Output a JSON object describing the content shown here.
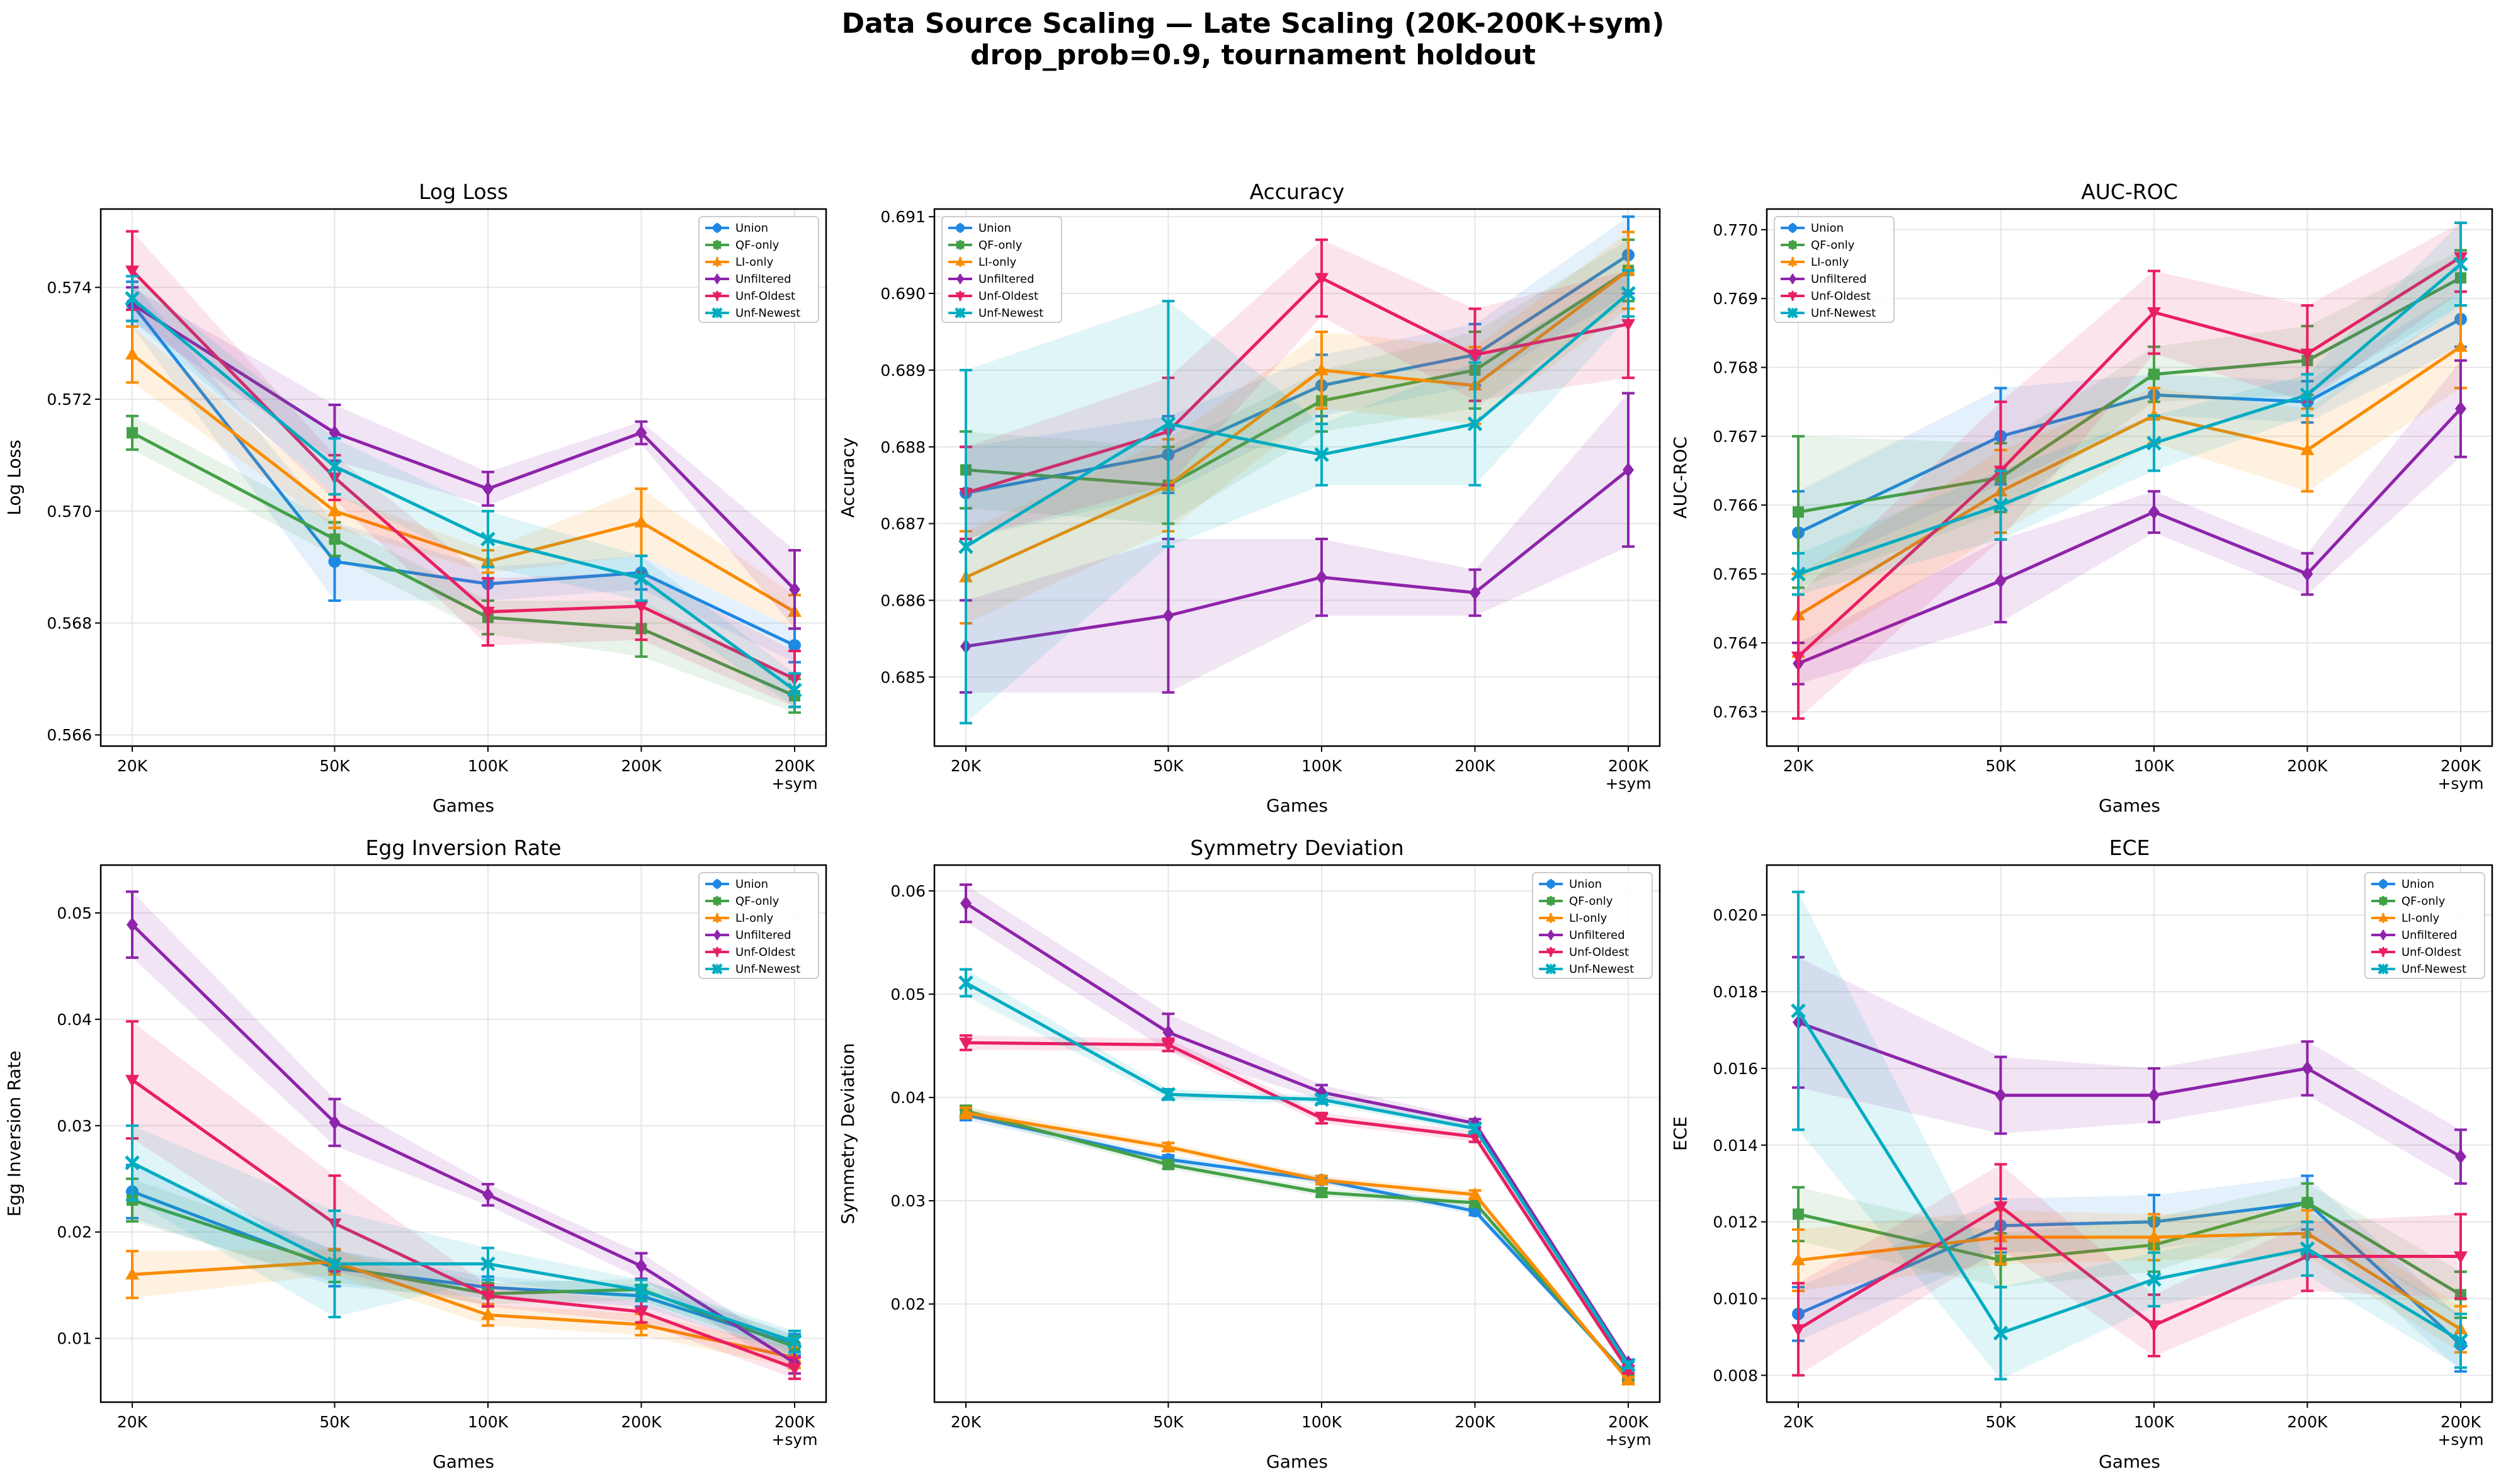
{
  "figure": {
    "title_line1": "Data Source Scaling — Late Scaling (20K-200K+sym)",
    "title_line2": "drop_prob=0.9, tournament holdout"
  },
  "colors": {
    "Union": "#1e88e5",
    "QF-only": "#43a047",
    "LI-only": "#fb8c00",
    "Unfiltered": "#8e24aa",
    "Unf-Oldest": "#e91e63",
    "Unf-Newest": "#00acc1"
  },
  "chart_data": [
    {
      "type": "line",
      "title": "Log Loss",
      "xlabel": "Games",
      "ylabel": "Log Loss",
      "categories": [
        "20K",
        "50K",
        "100K",
        "200K",
        "200K\n+sym"
      ],
      "ylim": [
        0.5658,
        0.5754
      ],
      "yticks": [
        0.566,
        0.568,
        0.57,
        0.572,
        0.574
      ],
      "ytick_labels": [
        "0.566",
        "0.568",
        "0.570",
        "0.572",
        "0.574"
      ],
      "legend": "top-right",
      "series": [
        {
          "name": "Union",
          "marker": "circle",
          "values": [
            0.5737,
            0.5691,
            0.5687,
            0.5689,
            0.5676
          ],
          "errors": [
            0.0004,
            0.0007,
            0.0003,
            0.0003,
            0.0003
          ]
        },
        {
          "name": "QF-only",
          "marker": "square",
          "values": [
            0.5714,
            0.5695,
            0.5681,
            0.5679,
            0.5667
          ],
          "errors": [
            0.0003,
            0.0003,
            0.0003,
            0.0005,
            0.0003
          ]
        },
        {
          "name": "LI-only",
          "marker": "triangle-up",
          "values": [
            0.5728,
            0.57,
            0.5691,
            0.5698,
            0.5682
          ],
          "errors": [
            0.0005,
            0.0003,
            0.0002,
            0.0006,
            0.0003
          ]
        },
        {
          "name": "Unfiltered",
          "marker": "diamond",
          "values": [
            0.5737,
            0.5714,
            0.5704,
            0.5714,
            0.5686
          ],
          "errors": [
            0.0003,
            0.0005,
            0.0003,
            0.0002,
            0.0007
          ]
        },
        {
          "name": "Unf-Oldest",
          "marker": "triangle-down",
          "values": [
            0.5743,
            0.5706,
            0.5682,
            0.5683,
            0.567
          ],
          "errors": [
            0.0007,
            0.0004,
            0.0006,
            0.0006,
            0.0005
          ]
        },
        {
          "name": "Unf-Newest",
          "marker": "x",
          "values": [
            0.5738,
            0.5708,
            0.5695,
            0.5688,
            0.5668
          ],
          "errors": [
            0.0004,
            0.0005,
            0.0005,
            0.0004,
            0.0003
          ]
        }
      ]
    },
    {
      "type": "line",
      "title": "Accuracy",
      "xlabel": "Games",
      "ylabel": "Accuracy",
      "categories": [
        "20K",
        "50K",
        "100K",
        "200K",
        "200K\n+sym"
      ],
      "ylim": [
        0.6841,
        0.6911
      ],
      "yticks": [
        0.685,
        0.686,
        0.687,
        0.688,
        0.689,
        0.69,
        0.691
      ],
      "ytick_labels": [
        "0.685",
        "0.686",
        "0.687",
        "0.688",
        "0.689",
        "0.690",
        "0.691"
      ],
      "legend": "top-left",
      "series": [
        {
          "name": "Union",
          "marker": "circle",
          "values": [
            0.6874,
            0.6879,
            0.6888,
            0.6892,
            0.6905
          ],
          "errors": [
            0.0006,
            0.0005,
            0.0004,
            0.0004,
            0.0005
          ]
        },
        {
          "name": "QF-only",
          "marker": "square",
          "values": [
            0.6877,
            0.6875,
            0.6886,
            0.689,
            0.6903
          ],
          "errors": [
            0.0005,
            0.0005,
            0.0004,
            0.0005,
            0.0004
          ]
        },
        {
          "name": "LI-only",
          "marker": "triangle-up",
          "values": [
            0.6863,
            0.6875,
            0.689,
            0.6888,
            0.6903
          ],
          "errors": [
            0.0006,
            0.0006,
            0.0005,
            0.0005,
            0.0005
          ]
        },
        {
          "name": "Unfiltered",
          "marker": "diamond",
          "values": [
            0.6854,
            0.6858,
            0.6863,
            0.6861,
            0.6877
          ],
          "errors": [
            0.0006,
            0.001,
            0.0005,
            0.0003,
            0.001
          ]
        },
        {
          "name": "Unf-Oldest",
          "marker": "triangle-down",
          "values": [
            0.6874,
            0.6882,
            0.6902,
            0.6892,
            0.6896
          ],
          "errors": [
            0.0006,
            0.0007,
            0.0005,
            0.0006,
            0.0007
          ]
        },
        {
          "name": "Unf-Newest",
          "marker": "x",
          "values": [
            0.6867,
            0.6883,
            0.6879,
            0.6883,
            0.69
          ],
          "errors": [
            0.0023,
            0.0016,
            0.0004,
            0.0008,
            0.0003
          ]
        }
      ]
    },
    {
      "type": "line",
      "title": "AUC-ROC",
      "xlabel": "Games",
      "ylabel": "AUC-ROC",
      "categories": [
        "20K",
        "50K",
        "100K",
        "200K",
        "200K\n+sym"
      ],
      "ylim": [
        0.7625,
        0.7703
      ],
      "yticks": [
        0.763,
        0.764,
        0.765,
        0.766,
        0.767,
        0.768,
        0.769,
        0.77
      ],
      "ytick_labels": [
        "0.763",
        "0.764",
        "0.765",
        "0.766",
        "0.767",
        "0.768",
        "0.769",
        "0.770"
      ],
      "legend": "top-left",
      "series": [
        {
          "name": "Union",
          "marker": "circle",
          "values": [
            0.7656,
            0.767,
            0.7676,
            0.7675,
            0.7687
          ],
          "errors": [
            0.0006,
            0.0007,
            0.0003,
            0.0003,
            0.0004
          ]
        },
        {
          "name": "QF-only",
          "marker": "square",
          "values": [
            0.7659,
            0.7664,
            0.7679,
            0.7681,
            0.7693
          ],
          "errors": [
            0.0011,
            0.0005,
            0.0004,
            0.0005,
            0.0004
          ]
        },
        {
          "name": "LI-only",
          "marker": "triangle-up",
          "values": [
            0.7644,
            0.7662,
            0.7673,
            0.7668,
            0.7683
          ],
          "errors": [
            0.0006,
            0.0006,
            0.0004,
            0.0006,
            0.0006
          ]
        },
        {
          "name": "Unfiltered",
          "marker": "diamond",
          "values": [
            0.7637,
            0.7649,
            0.7659,
            0.765,
            0.7674
          ],
          "errors": [
            0.0003,
            0.0006,
            0.0003,
            0.0003,
            0.0007
          ]
        },
        {
          "name": "Unf-Oldest",
          "marker": "triangle-down",
          "values": [
            0.7638,
            0.7665,
            0.7688,
            0.7682,
            0.7696
          ],
          "errors": [
            0.0009,
            0.001,
            0.0006,
            0.0007,
            0.0005
          ]
        },
        {
          "name": "Unf-Newest",
          "marker": "x",
          "values": [
            0.765,
            0.766,
            0.7669,
            0.7676,
            0.7695
          ],
          "errors": [
            0.0003,
            0.0005,
            0.0004,
            0.0003,
            0.0006
          ]
        }
      ]
    },
    {
      "type": "line",
      "title": "Egg Inversion Rate",
      "xlabel": "Games",
      "ylabel": "Egg Inversion Rate",
      "categories": [
        "20K",
        "50K",
        "100K",
        "200K",
        "200K\n+sym"
      ],
      "ylim": [
        0.004,
        0.0545
      ],
      "yticks": [
        0.01,
        0.02,
        0.03,
        0.04,
        0.05
      ],
      "ytick_labels": [
        "0.01",
        "0.02",
        "0.03",
        "0.04",
        "0.05"
      ],
      "legend": "top-right",
      "series": [
        {
          "name": "Union",
          "marker": "circle",
          "values": [
            0.0238,
            0.0166,
            0.0148,
            0.014,
            0.0094
          ],
          "errors": [
            0.0025,
            0.0017,
            0.001,
            0.001,
            0.001
          ]
        },
        {
          "name": "QF-only",
          "marker": "square",
          "values": [
            0.023,
            0.0168,
            0.0142,
            0.0146,
            0.0092
          ],
          "errors": [
            0.002,
            0.0015,
            0.001,
            0.001,
            0.001
          ]
        },
        {
          "name": "LI-only",
          "marker": "triangle-up",
          "values": [
            0.016,
            0.0172,
            0.0122,
            0.0113,
            0.0082
          ],
          "errors": [
            0.0022,
            0.0012,
            0.001,
            0.001,
            0.001
          ]
        },
        {
          "name": "Unfiltered",
          "marker": "diamond",
          "values": [
            0.0489,
            0.0303,
            0.0235,
            0.0168,
            0.0077
          ],
          "errors": [
            0.0031,
            0.0022,
            0.001,
            0.0012,
            0.001
          ]
        },
        {
          "name": "Unf-Oldest",
          "marker": "triangle-down",
          "values": [
            0.0343,
            0.0208,
            0.014,
            0.0125,
            0.0072
          ],
          "errors": [
            0.0055,
            0.0045,
            0.001,
            0.001,
            0.001
          ]
        },
        {
          "name": "Unf-Newest",
          "marker": "x",
          "values": [
            0.0265,
            0.017,
            0.017,
            0.0145,
            0.0097
          ],
          "errors": [
            0.0035,
            0.005,
            0.0015,
            0.001,
            0.001
          ]
        }
      ]
    },
    {
      "type": "line",
      "title": "Symmetry Deviation",
      "xlabel": "Games",
      "ylabel": "Symmetry Deviation",
      "categories": [
        "20K",
        "50K",
        "100K",
        "200K",
        "200K\n+sym"
      ],
      "ylim": [
        0.0105,
        0.0625
      ],
      "yticks": [
        0.02,
        0.03,
        0.04,
        0.05,
        0.06
      ],
      "ytick_labels": [
        "0.02",
        "0.03",
        "0.04",
        "0.05",
        "0.06"
      ],
      "legend": "top-right",
      "series": [
        {
          "name": "Union",
          "marker": "circle",
          "values": [
            0.0383,
            0.034,
            0.032,
            0.029,
            0.013
          ],
          "errors": [
            0.0005,
            0.0004,
            0.0004,
            0.0004,
            0.0003
          ]
        },
        {
          "name": "QF-only",
          "marker": "square",
          "values": [
            0.0387,
            0.0335,
            0.0308,
            0.0298,
            0.0128
          ],
          "errors": [
            0.0005,
            0.0004,
            0.0004,
            0.0004,
            0.0003
          ]
        },
        {
          "name": "LI-only",
          "marker": "triangle-up",
          "values": [
            0.0385,
            0.0352,
            0.032,
            0.0306,
            0.0126
          ],
          "errors": [
            0.0005,
            0.0004,
            0.0004,
            0.0004,
            0.0003
          ]
        },
        {
          "name": "Unfiltered",
          "marker": "diamond",
          "values": [
            0.0588,
            0.0463,
            0.0405,
            0.0375,
            0.0143
          ],
          "errors": [
            0.0018,
            0.0018,
            0.0007,
            0.0004,
            0.0003
          ]
        },
        {
          "name": "Unf-Oldest",
          "marker": "triangle-down",
          "values": [
            0.0453,
            0.0451,
            0.038,
            0.0362,
            0.0136
          ],
          "errors": [
            0.0007,
            0.0006,
            0.0005,
            0.0005,
            0.0003
          ]
        },
        {
          "name": "Unf-Newest",
          "marker": "x",
          "values": [
            0.0511,
            0.0403,
            0.0398,
            0.037,
            0.0141
          ],
          "errors": [
            0.0013,
            0.0005,
            0.0004,
            0.0004,
            0.0003
          ]
        }
      ]
    },
    {
      "type": "line",
      "title": "ECE",
      "xlabel": "Games",
      "ylabel": "ECE",
      "categories": [
        "20K",
        "50K",
        "100K",
        "200K",
        "200K\n+sym"
      ],
      "ylim": [
        0.0073,
        0.0213
      ],
      "yticks": [
        0.008,
        0.01,
        0.012,
        0.014,
        0.016,
        0.018,
        0.02
      ],
      "ytick_labels": [
        "0.008",
        "0.010",
        "0.012",
        "0.014",
        "0.016",
        "0.018",
        "0.020"
      ],
      "legend": "top-right",
      "series": [
        {
          "name": "Union",
          "marker": "circle",
          "values": [
            0.0096,
            0.0119,
            0.012,
            0.0125,
            0.0088
          ],
          "errors": [
            0.0007,
            0.0007,
            0.0007,
            0.0007,
            0.0007
          ]
        },
        {
          "name": "QF-only",
          "marker": "square",
          "values": [
            0.0122,
            0.011,
            0.0114,
            0.0125,
            0.0101
          ],
          "errors": [
            0.0007,
            0.0007,
            0.0007,
            0.0005,
            0.0006
          ]
        },
        {
          "name": "LI-only",
          "marker": "triangle-up",
          "values": [
            0.011,
            0.0116,
            0.0116,
            0.0117,
            0.0092
          ],
          "errors": [
            0.0008,
            0.0007,
            0.0006,
            0.0006,
            0.0006
          ]
        },
        {
          "name": "Unfiltered",
          "marker": "diamond",
          "values": [
            0.0172,
            0.0153,
            0.0153,
            0.016,
            0.0137
          ],
          "errors": [
            0.0017,
            0.001,
            0.0007,
            0.0007,
            0.0007
          ]
        },
        {
          "name": "Unf-Oldest",
          "marker": "triangle-down",
          "values": [
            0.0092,
            0.0124,
            0.0093,
            0.0111,
            0.0111
          ],
          "errors": [
            0.0012,
            0.0011,
            0.0008,
            0.0009,
            0.0011
          ]
        },
        {
          "name": "Unf-Newest",
          "marker": "x",
          "values": [
            0.0175,
            0.0091,
            0.0105,
            0.0113,
            0.0089
          ],
          "errors": [
            0.0031,
            0.0012,
            0.0007,
            0.0007,
            0.0007
          ]
        }
      ]
    }
  ]
}
